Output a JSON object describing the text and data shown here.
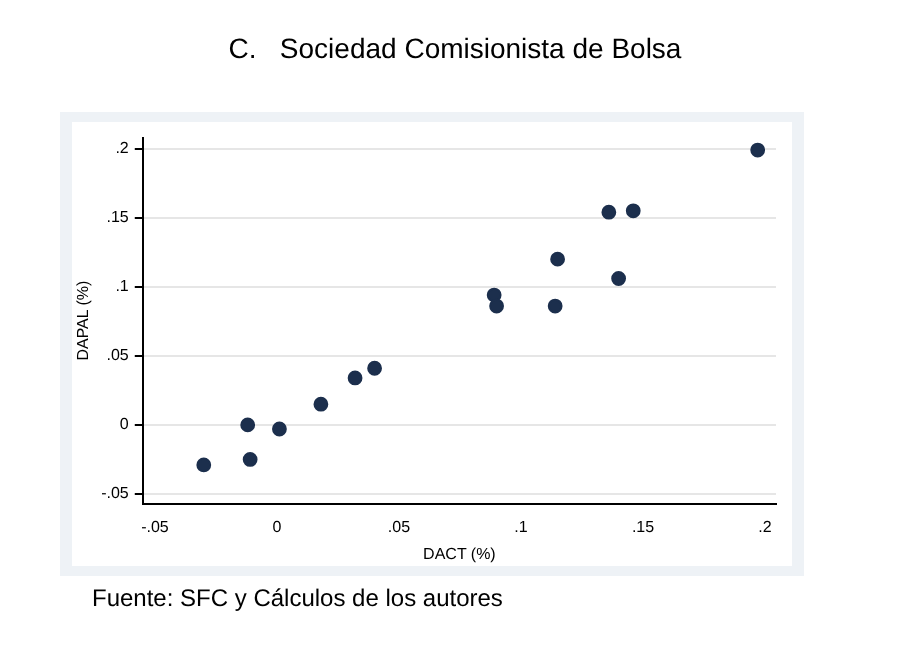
{
  "chart_data": {
    "type": "scatter",
    "title": "C.   Sociedad Comisionista de Bolsa",
    "xlabel": "DACT (%)",
    "ylabel": "DAPAL (%)",
    "x": [
      0.197,
      0.136,
      0.146,
      0.115,
      0.14,
      0.089,
      0.09,
      0.114,
      0.04,
      0.032,
      0.018,
      -0.012,
      0.001,
      -0.011,
      -0.03
    ],
    "values": [
      0.199,
      0.154,
      0.155,
      0.12,
      0.106,
      0.094,
      0.086,
      0.086,
      0.041,
      0.034,
      0.015,
      0.0,
      -0.003,
      -0.025,
      -0.029
    ],
    "color": "#1c2f4d",
    "marker": "circle",
    "xlim": [
      -0.055,
      0.2045
    ],
    "ylim": [
      -0.057,
      0.208
    ],
    "xticks": [
      {
        "value": -0.05,
        "label": "-.05"
      },
      0,
      {
        "value": 0.05,
        "label": ".05"
      },
      {
        "value": 0.1,
        "label": ".1"
      },
      {
        "value": 0.15,
        "label": ".15"
      },
      {
        "value": 0.2,
        "label": ".2"
      }
    ],
    "yticks": [
      {
        "value": -0.05,
        "label": "-.05"
      },
      0,
      {
        "value": 0.05,
        "label": ".05"
      },
      {
        "value": 0.1,
        "label": ".1"
      },
      {
        "value": 0.15,
        "label": ".15"
      },
      {
        "value": 0.2,
        "label": ".2"
      }
    ],
    "grid": "y",
    "legend": false,
    "annotations": [
      "Fuente: SFC y Cálculos de los autores"
    ]
  }
}
